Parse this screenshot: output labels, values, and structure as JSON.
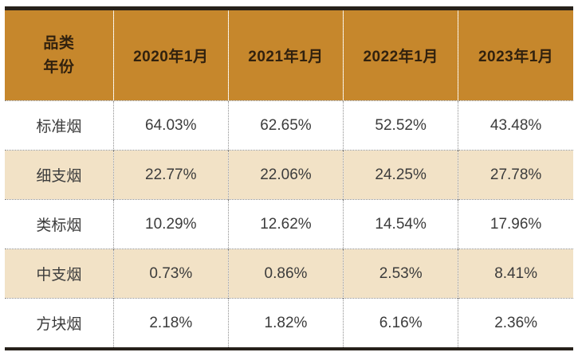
{
  "chart_data": {
    "type": "table",
    "corner_header": {
      "line1": "品类",
      "line2": "年份"
    },
    "columns": [
      "2020年1月",
      "2021年1月",
      "2022年1月",
      "2023年1月"
    ],
    "rows": [
      {
        "label": "标准烟",
        "values": [
          "64.03%",
          "62.65%",
          "52.52%",
          "43.48%"
        ]
      },
      {
        "label": "细支烟",
        "values": [
          "22.77%",
          "22.06%",
          "24.25%",
          "27.78%"
        ]
      },
      {
        "label": "类标烟",
        "values": [
          "10.29%",
          "12.62%",
          "14.54%",
          "17.96%"
        ]
      },
      {
        "label": "中支烟",
        "values": [
          "0.73%",
          "0.86%",
          "2.53%",
          "8.41%"
        ]
      },
      {
        "label": "方块烟",
        "values": [
          "2.18%",
          "1.82%",
          "6.16%",
          "2.36%"
        ]
      }
    ],
    "layout_hints": {
      "alternating_row_shading": "rows 2 and 4 shaded tan",
      "column_separators": "dotted",
      "top_bottom_rule": "thick dark"
    }
  },
  "colors": {
    "header_bg": "#c6872c",
    "alt_row_bg": "#f2e2c6",
    "rule_dark": "#27211a",
    "body_text": "#3c3c3c",
    "header_text": "#31210e",
    "dotted_line_body": "#8d8d8d",
    "dotted_line_header": "#f3e6cd"
  }
}
